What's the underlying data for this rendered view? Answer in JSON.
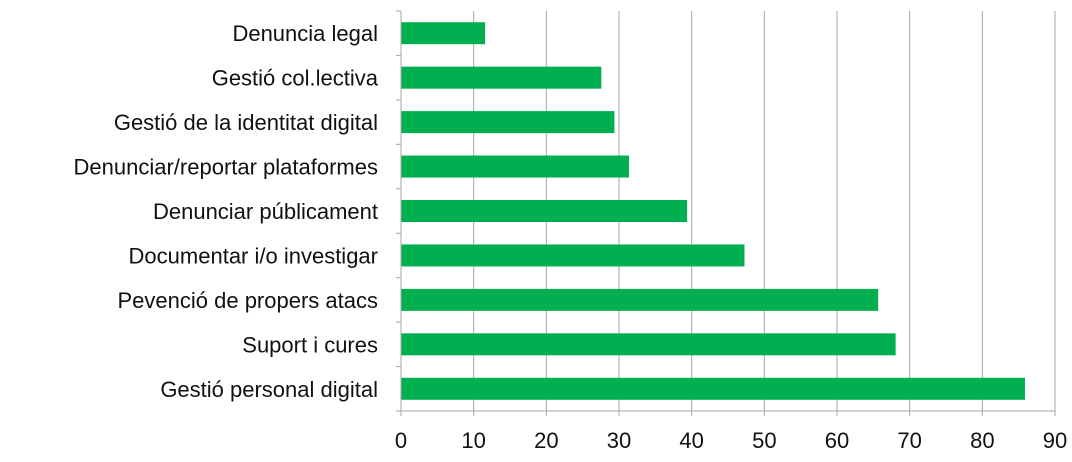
{
  "chart_data": {
    "type": "bar",
    "orientation": "horizontal",
    "categories": [
      "Denuncia legal ",
      "Gestió col.lectiva",
      "Gestió de la identitat digital",
      "Denunciar/reportar plataformes",
      "Denunciar públicament",
      "Documentar i/o investigar ",
      "Pevenció de propers atacs",
      "Suport i cures",
      "Gestió personal digital"
    ],
    "values": [
      11.5,
      27.5,
      29.3,
      31.3,
      39.3,
      47.2,
      65.6,
      68.0,
      85.8
    ],
    "title": "",
    "xlabel": "",
    "ylabel": "",
    "xlim": [
      0,
      90
    ],
    "xticks": [
      "0",
      "10",
      "20",
      "30",
      "40",
      "50",
      "60",
      "70",
      "80",
      "90"
    ],
    "grid": "vertical",
    "legend": "none",
    "bar_color": "#00b050",
    "grid_color": "#a6a6a6"
  }
}
